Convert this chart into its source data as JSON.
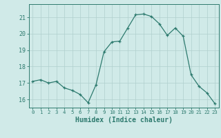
{
  "x": [
    0,
    1,
    2,
    3,
    4,
    5,
    6,
    7,
    8,
    9,
    10,
    11,
    12,
    13,
    14,
    15,
    16,
    17,
    18,
    19,
    20,
    21,
    22,
    23
  ],
  "y": [
    17.1,
    17.2,
    17.0,
    17.1,
    16.7,
    16.55,
    16.3,
    15.8,
    16.9,
    18.9,
    19.5,
    19.55,
    20.35,
    21.15,
    21.2,
    21.05,
    20.6,
    19.9,
    20.35,
    19.85,
    17.5,
    16.8,
    16.4,
    15.75
  ],
  "xlabel": "Humidex (Indice chaleur)",
  "ylim": [
    15.5,
    21.8
  ],
  "xlim": [
    -0.5,
    23.5
  ],
  "yticks": [
    16,
    17,
    18,
    19,
    20,
    21
  ],
  "xticks": [
    0,
    1,
    2,
    3,
    4,
    5,
    6,
    7,
    8,
    9,
    10,
    11,
    12,
    13,
    14,
    15,
    16,
    17,
    18,
    19,
    20,
    21,
    22,
    23
  ],
  "line_color": "#2d7a6e",
  "bg_color": "#d0eae8",
  "grid_color": "#b0d0cd",
  "tick_color": "#2d7a6e",
  "label_color": "#2d7a6e",
  "font_family": "monospace"
}
